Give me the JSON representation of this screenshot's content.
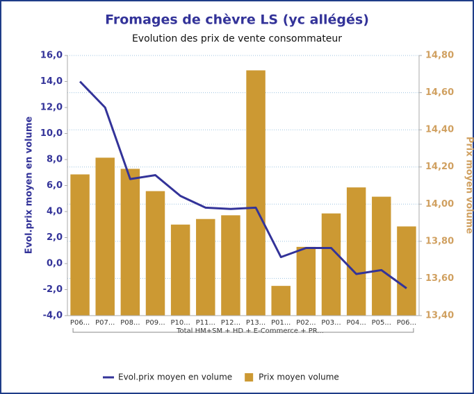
{
  "chart_data": {
    "type": "bar",
    "title": "Fromages de chèvre LS (yc allégés)",
    "subtitle": "Evolution des prix de vente consommateur",
    "y_label": "Evol.prix moyen en volume",
    "y2_label": "Prix moyen volume",
    "group_label": "Total HM+SM + HD + E-Commerce + PR...",
    "categories": [
      "P06...",
      "P07...",
      "P08...",
      "P09...",
      "P10...",
      "P11...",
      "P12...",
      "P13...",
      "P01...",
      "P02...",
      "P03...",
      "P04...",
      "P05...",
      "P06..."
    ],
    "series": [
      {
        "name": "Evol.prix moyen en volume",
        "type": "line",
        "color": "#333399",
        "axis": "y",
        "values": [
          14.0,
          12.0,
          6.5,
          6.8,
          5.2,
          4.3,
          4.2,
          4.3,
          0.5,
          1.2,
          1.2,
          -0.8,
          -0.5,
          -1.9
        ]
      },
      {
        "name": "Prix moyen volume",
        "type": "bar",
        "color": "#cc9933",
        "axis": "y2",
        "values": [
          14.16,
          14.25,
          14.19,
          14.07,
          13.89,
          13.92,
          13.94,
          14.72,
          13.56,
          13.77,
          13.95,
          14.09,
          14.04,
          13.88
        ]
      }
    ],
    "ylim": [
      -4,
      16
    ],
    "yticks": [
      {
        "value": -4,
        "label": "-4,0"
      },
      {
        "value": -2,
        "label": "-2,0"
      },
      {
        "value": 0,
        "label": "0,0"
      },
      {
        "value": 2,
        "label": "2,0"
      },
      {
        "value": 4,
        "label": "4,0"
      },
      {
        "value": 6,
        "label": "6,0"
      },
      {
        "value": 8,
        "label": "8,0"
      },
      {
        "value": 10,
        "label": "10,0"
      },
      {
        "value": 12,
        "label": "12,0"
      },
      {
        "value": 14,
        "label": "14,0"
      },
      {
        "value": 16,
        "label": "16,0"
      }
    ],
    "y2lim": [
      13.4,
      14.8
    ],
    "y2ticks": [
      {
        "value": 13.4,
        "label": "13,40"
      },
      {
        "value": 13.6,
        "label": "13,60"
      },
      {
        "value": 13.8,
        "label": "13,80"
      },
      {
        "value": 14.0,
        "label": "14,00"
      },
      {
        "value": 14.2,
        "label": "14,20"
      },
      {
        "value": 14.4,
        "label": "14,40"
      },
      {
        "value": 14.6,
        "label": "14,60"
      },
      {
        "value": 14.8,
        "label": "14,80"
      }
    ],
    "grid": true,
    "legend": "bottom"
  }
}
